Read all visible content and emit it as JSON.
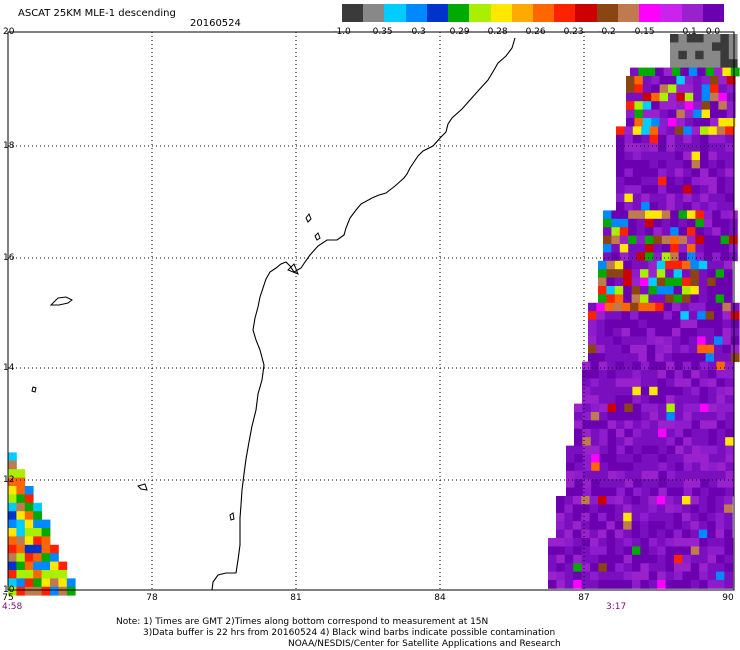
{
  "header": {
    "title": "ASCAT 25KM MLE-1 descending",
    "date": "20160524"
  },
  "colorbar": {
    "colors": [
      "#3a3a3a",
      "#888888",
      "#00ccff",
      "#0088ff",
      "#0033cc",
      "#00aa00",
      "#aaee00",
      "#ffe800",
      "#ffaa00",
      "#ff6600",
      "#ff2200",
      "#cc0000",
      "#8b4513",
      "#c07a50",
      "#ff00ff",
      "#cc22ee",
      "#9922cc",
      "#6b00b0"
    ],
    "labels": [
      "-1.0",
      "-0.35",
      "-0.3",
      "-0.29",
      "-0.28",
      "-0.26",
      "-0.23",
      "-0.2",
      "-0.15",
      "-0.1",
      "0.0"
    ]
  },
  "map": {
    "y_ticks": [
      "20",
      "18",
      "16",
      "14",
      "12",
      "10"
    ],
    "x_ticks": [
      "75",
      "78",
      "81",
      "84",
      "87",
      "90"
    ],
    "pass_times": {
      "left": "4:58",
      "right": "3:17"
    },
    "lon_range": [
      75,
      90
    ],
    "lat_range": [
      10,
      20
    ]
  },
  "notes": {
    "line1": "Note: 1) Times are GMT 2)Times along bottom correspond to measurement at 15N",
    "line2": "3)Data buffer is 22 hrs from 20160524 4) Black wind barbs indicate possible contamination",
    "line3": "NOAA/NESDIS/Center for Satellite Applications and Research"
  }
}
